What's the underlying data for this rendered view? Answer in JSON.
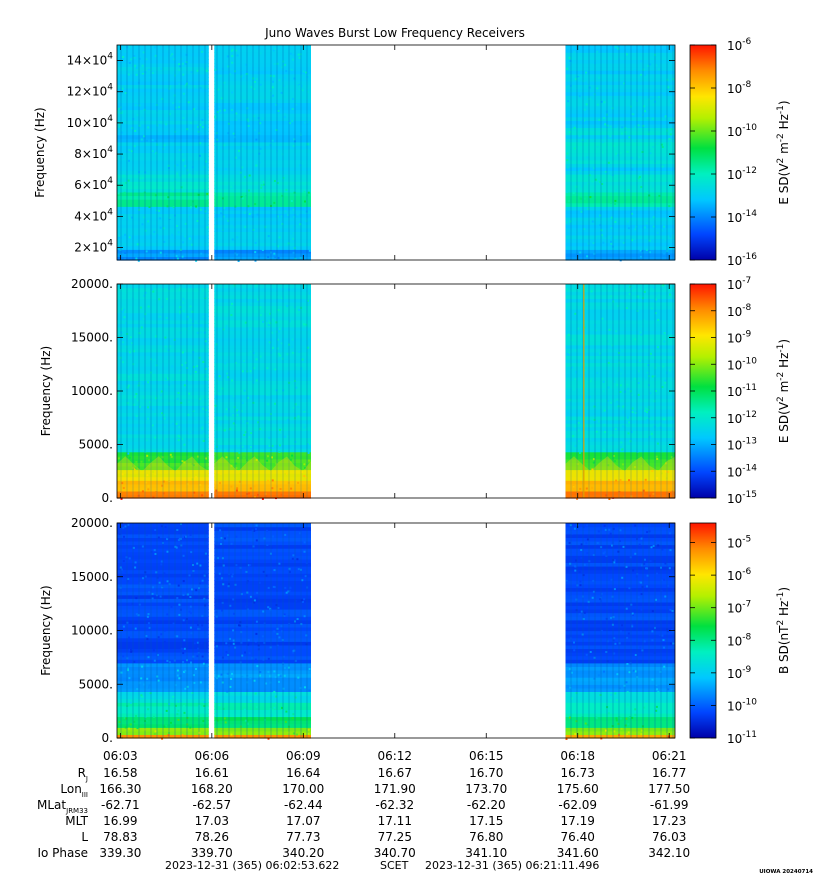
{
  "title": "Juno Waves Burst Low Frequency Receivers",
  "chart_data": [
    {
      "type": "heatmap",
      "name": "panel-1",
      "ylabel": "Frequency (Hz)",
      "ylim": [
        12000,
        150000
      ],
      "yticks": [
        {
          "v": 20000,
          "m": "2",
          "e": "4"
        },
        {
          "v": 40000,
          "m": "4",
          "e": "4"
        },
        {
          "v": 60000,
          "m": "6",
          "e": "4"
        },
        {
          "v": 80000,
          "m": "8",
          "e": "4"
        },
        {
          "v": 100000,
          "m": "10",
          "e": "4"
        },
        {
          "v": 120000,
          "m": "12",
          "e": "4"
        },
        {
          "v": 140000,
          "m": "14",
          "e": "4"
        }
      ],
      "colorbar": {
        "label_main": "E SD(V",
        "label_sup1": "2",
        "label_mid": " m",
        "label_sup2": "-2",
        "label_hz": " Hz",
        "label_sup3": "-1",
        "label_end": ")",
        "range_exp": [
          -16,
          -6
        ],
        "ticks": [
          "-6",
          "-8",
          "-10",
          "-12",
          "-14",
          "-16"
        ]
      }
    },
    {
      "type": "heatmap",
      "name": "panel-2",
      "ylabel": "Frequency (Hz)",
      "ylim": [
        0,
        20000
      ],
      "yticks": [
        {
          "v": 0,
          "t": "0."
        },
        {
          "v": 5000,
          "t": "5000."
        },
        {
          "v": 10000,
          "t": "10000."
        },
        {
          "v": 15000,
          "t": "15000."
        },
        {
          "v": 20000,
          "t": "20000."
        }
      ],
      "colorbar": {
        "label_main": "E SD(V",
        "label_sup1": "2",
        "label_mid": " m",
        "label_sup2": "-2",
        "label_hz": " Hz",
        "label_sup3": "-1",
        "label_end": ")",
        "range_exp": [
          -15,
          -7
        ],
        "ticks": [
          "-7",
          "-8",
          "-9",
          "-10",
          "-11",
          "-12",
          "-13",
          "-14",
          "-15"
        ]
      }
    },
    {
      "type": "heatmap",
      "name": "panel-3",
      "ylabel": "Frequency (Hz)",
      "ylim": [
        0,
        20000
      ],
      "yticks": [
        {
          "v": 0,
          "t": "0."
        },
        {
          "v": 5000,
          "t": "5000."
        },
        {
          "v": 10000,
          "t": "10000."
        },
        {
          "v": 15000,
          "t": "15000."
        },
        {
          "v": 20000,
          "t": "20000."
        }
      ],
      "colorbar": {
        "label_main": "B SD(nT",
        "label_sup1": "2",
        "label_mid": "",
        "label_sup2": "",
        "label_hz": " Hz",
        "label_sup3": "-1",
        "label_end": ")",
        "range_exp": [
          -11,
          -4.4
        ],
        "ticks": [
          "-5",
          "-6",
          "-7",
          "-8",
          "-9",
          "-10",
          "-11"
        ]
      }
    }
  ],
  "time_axis": {
    "start_minutes": 362.89,
    "end_minutes": 381.19,
    "tick_minutes": [
      363,
      366,
      369,
      372,
      375,
      378,
      381
    ],
    "tick_labels": [
      "06:03",
      "06:06",
      "06:09",
      "06:12",
      "06:15",
      "06:18",
      "06:21"
    ],
    "data_segments_minutes": [
      [
        362.89,
        365.9
      ],
      [
        366.08,
        369.25
      ],
      [
        377.6,
        381.19
      ]
    ]
  },
  "ephemeris": {
    "rows": [
      {
        "label": "R",
        "sub": "J",
        "values": [
          "16.58",
          "16.61",
          "16.64",
          "16.67",
          "16.70",
          "16.73",
          "16.77"
        ]
      },
      {
        "label": "Lon",
        "sub": "III",
        "values": [
          "166.30",
          "168.20",
          "170.00",
          "171.90",
          "173.70",
          "175.60",
          "177.50"
        ]
      },
      {
        "label": "MLat",
        "sub": "JRM33",
        "values": [
          "-62.71",
          "-62.57",
          "-62.44",
          "-62.32",
          "-62.20",
          "-62.09",
          "-61.99"
        ]
      },
      {
        "label": "MLT",
        "sub": "",
        "values": [
          "16.99",
          "17.03",
          "17.07",
          "17.11",
          "17.15",
          "17.19",
          "17.23"
        ]
      },
      {
        "label": "L",
        "sub": "",
        "values": [
          "78.83",
          "78.26",
          "77.73",
          "77.25",
          "76.80",
          "76.40",
          "76.03"
        ]
      },
      {
        "label": "Io Phase",
        "sub": "",
        "values": [
          "339.30",
          "339.70",
          "340.20",
          "340.70",
          "341.10",
          "341.60",
          "342.10"
        ]
      }
    ]
  },
  "footer": {
    "start": "2023-12-31 (365) 06:02:53.622",
    "scet": "SCET",
    "end": "2023-12-31 (365) 06:21:11.496",
    "stamp": "UIOWA 20240714"
  }
}
